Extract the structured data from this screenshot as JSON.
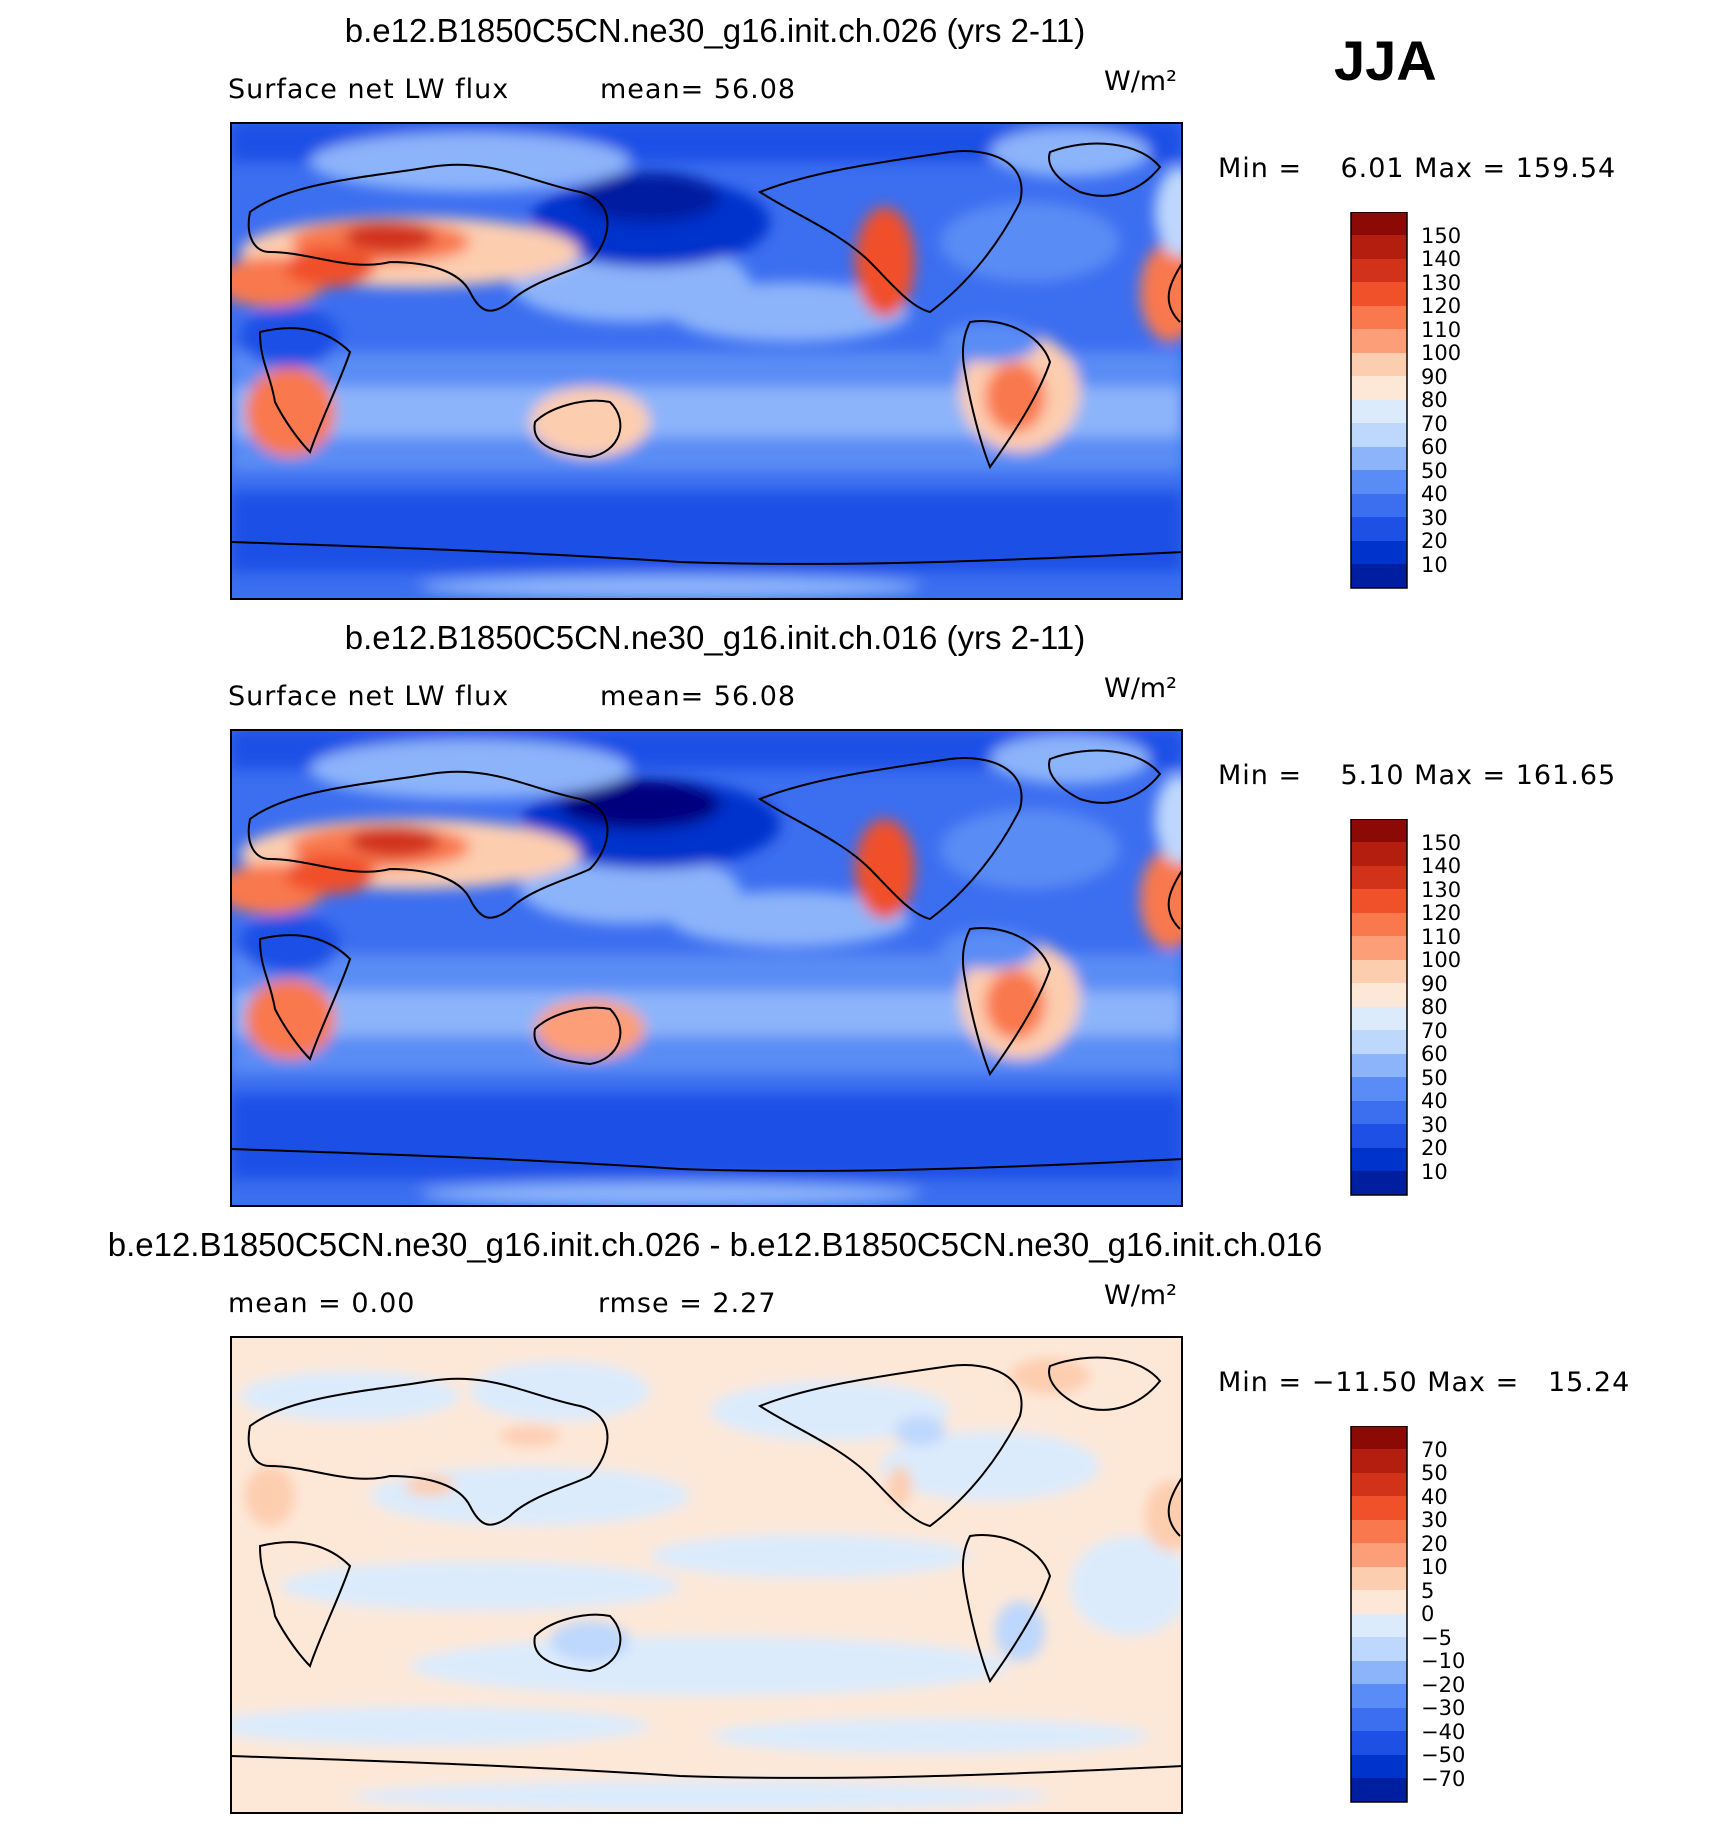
{
  "season": "JJA",
  "colors": {
    "abs_scale": [
      "#00007f",
      "#001ea0",
      "#0033cc",
      "#1e50e6",
      "#3c6ef0",
      "#5a8cf5",
      "#8cb4fa",
      "#bed7fc",
      "#dcebfc",
      "#fde8d8",
      "#fdcdb0",
      "#fc9e78",
      "#f9784e",
      "#f0502a",
      "#d2321a",
      "#b41e0f",
      "#8c0a05"
    ],
    "diff_scale": [
      "#00007f",
      "#001ea0",
      "#0033cc",
      "#1e50e6",
      "#3c6ef0",
      "#5a8cf5",
      "#8cb4fa",
      "#bed7fc",
      "#dcebfc",
      "#fde8d8",
      "#fdcdb0",
      "#fc9e78",
      "#f9784e",
      "#f0502a",
      "#d2321a",
      "#b41e0f",
      "#8c0a05"
    ]
  },
  "panels": [
    {
      "title": "b.e12.B1850C5CN.ne30_g16.init.ch.026 (yrs 2-11)",
      "left_label": "Surface net LW flux",
      "right_label": "mean=  56.08",
      "units": "W/m²",
      "minmax": "Min =    6.01 Max = 159.54",
      "colorbar_labels": [
        "150",
        "140",
        "130",
        "120",
        "110",
        "100",
        "90",
        "80",
        "70",
        "60",
        "50",
        "40",
        "30",
        "20",
        "10"
      ]
    },
    {
      "title": "b.e12.B1850C5CN.ne30_g16.init.ch.016 (yrs 2-11)",
      "left_label": "Surface net LW flux",
      "right_label": "mean=  56.08",
      "units": "W/m²",
      "minmax": "Min =    5.10 Max = 161.65",
      "colorbar_labels": [
        "150",
        "140",
        "130",
        "120",
        "110",
        "100",
        "90",
        "80",
        "70",
        "60",
        "50",
        "40",
        "30",
        "20",
        "10"
      ]
    },
    {
      "title": "b.e12.B1850C5CN.ne30_g16.init.ch.026 - b.e12.B1850C5CN.ne30_g16.init.ch.016",
      "left_label": "mean =    0.00",
      "right_label": "rmse =    2.27",
      "units": "W/m²",
      "minmax": "Min = −11.50 Max =   15.24",
      "colorbar_labels": [
        "70",
        "50",
        "40",
        "30",
        "20",
        "10",
        "5",
        "0",
        "−5",
        "−10",
        "−20",
        "−30",
        "−40",
        "−50",
        "−70"
      ]
    }
  ]
}
